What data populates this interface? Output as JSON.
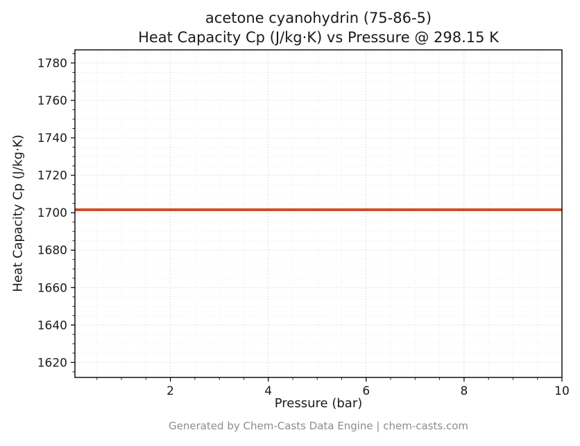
{
  "chart_data": {
    "type": "line",
    "title_lines": [
      "acetone cyanohydrin (75-86-5)",
      "Heat Capacity Cp (J/kg·K) vs Pressure @ 298.15 K"
    ],
    "xlabel": "Pressure (bar)",
    "ylabel": "Heat Capacity Cp (J/kg·K)",
    "xlim": [
      0.05,
      10
    ],
    "ylim": [
      1612,
      1787
    ],
    "x_ticks": [
      2,
      4,
      6,
      8,
      10
    ],
    "y_ticks": [
      1620,
      1640,
      1660,
      1680,
      1700,
      1720,
      1740,
      1760,
      1780
    ],
    "x_minor_step": 0.5,
    "y_minor_step": 5,
    "grid": true,
    "legend": "none",
    "series": [
      {
        "name": "Heat Capacity Cp",
        "color": "#cf4a27",
        "linewidth": 4,
        "x": [
          0.05,
          10
        ],
        "y": [
          1701.6,
          1701.6
        ]
      }
    ]
  },
  "footer": {
    "text": "Generated by Chem-Casts Data Engine | chem-casts.com"
  },
  "colors": {
    "background": "#ffffff",
    "axis": "#000000",
    "text": "#1a1a1a",
    "grid_major": "#c8c8c8",
    "grid_minor": "#e4e4e4",
    "footer_text": "#8c8c8c"
  }
}
